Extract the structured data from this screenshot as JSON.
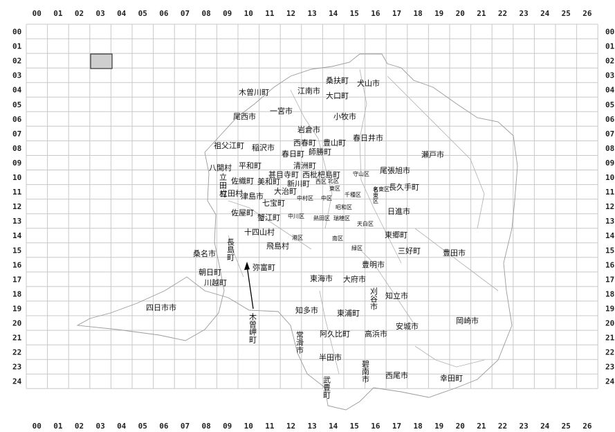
{
  "grid": {
    "col_labels": [
      "00",
      "01",
      "02",
      "03",
      "04",
      "05",
      "06",
      "07",
      "08",
      "09",
      "10",
      "11",
      "12",
      "13",
      "14",
      "15",
      "16",
      "17",
      "18",
      "19",
      "20",
      "21",
      "22",
      "23",
      "24",
      "25",
      "26"
    ],
    "row_labels": [
      "00",
      "01",
      "02",
      "03",
      "04",
      "05",
      "06",
      "07",
      "08",
      "09",
      "10",
      "11",
      "12",
      "13",
      "14",
      "15",
      "16",
      "17",
      "18",
      "19",
      "20",
      "21",
      "22",
      "23",
      "24"
    ],
    "selected_cell": {
      "col": "03",
      "row": "02"
    }
  },
  "places": {
    "fusou": "桑扶町",
    "inuyama": "犬山市",
    "kisogawa": "木曽川町",
    "konan": "江南市",
    "oguchi": "大口町",
    "ichinomiya": "一宮市",
    "bisai": "尾西市",
    "komaki": "小牧市",
    "iwakura": "岩倉市",
    "kasugai": "春日井市",
    "sobue": "祖父江町",
    "inazawa": "稲沢市",
    "nishiharu": "西春町",
    "toyoyama": "豊山町",
    "kasugacho": "春日町",
    "shikatsu": "師勝町",
    "seto": "瀬戸市",
    "hachikai": "八開村",
    "heiwa": "平和町",
    "kiyosu": "清洲町",
    "jimokuji": "甚目寺町",
    "nishibiwajima": "西枇杷島町",
    "moriyama_ku": "守山区",
    "owariasahi": "尾張旭市",
    "saori": "佐織町",
    "miwa": "美和町",
    "shinkawa": "新川町",
    "nishi_ku": "西区",
    "kita_ku": "北区",
    "higashi_ku": "東区",
    "meito_ku": "名東区",
    "nagakute": "長久手町",
    "tatsuta": "立田村",
    "tsushima": "津島市",
    "ohaaru": "大治町",
    "shippo": "七宝町",
    "nakamura_ku": "中村区",
    "naka_ku": "中区",
    "chikusa_ku": "千種区",
    "showa_ku": "昭和区",
    "nisshin": "日進市",
    "saya": "佐屋町",
    "kanie": "蟹江町",
    "nakagawa_ku": "中川区",
    "atsuta_ku": "熱田区",
    "mizuho_ku": "瑞穂区",
    "tenpaku_ku": "天白区",
    "jushiyama": "十四山村",
    "nagashima": "長島町",
    "minato_ku": "港区",
    "minami_ku": "南区",
    "togo": "東郷町",
    "tobishima": "飛島村",
    "kuwana": "桑名市",
    "midori_ku": "緑区",
    "miyoshi": "三好町",
    "toyota": "豊田市",
    "toyoake": "豊明市",
    "yatomi": "弥富町",
    "asahi": "朝日町",
    "kawagoe": "川越町",
    "tokai": "東海市",
    "obu": "大府市",
    "kariya": "刈谷市",
    "chiryu": "知立市",
    "yokkaichi": "四日市市",
    "kisosaki": "木曽岬町",
    "chita": "知多市",
    "higashiura": "東浦町",
    "okazaki": "岡崎市",
    "anjo": "安城市",
    "agui": "阿久比町",
    "takahama": "高浜市",
    "tokoname": "常滑市",
    "handa": "半田市",
    "hekinan": "碧南市",
    "nishio": "西尾市",
    "kota": "幸田町",
    "taketoyo": "武豊町"
  }
}
